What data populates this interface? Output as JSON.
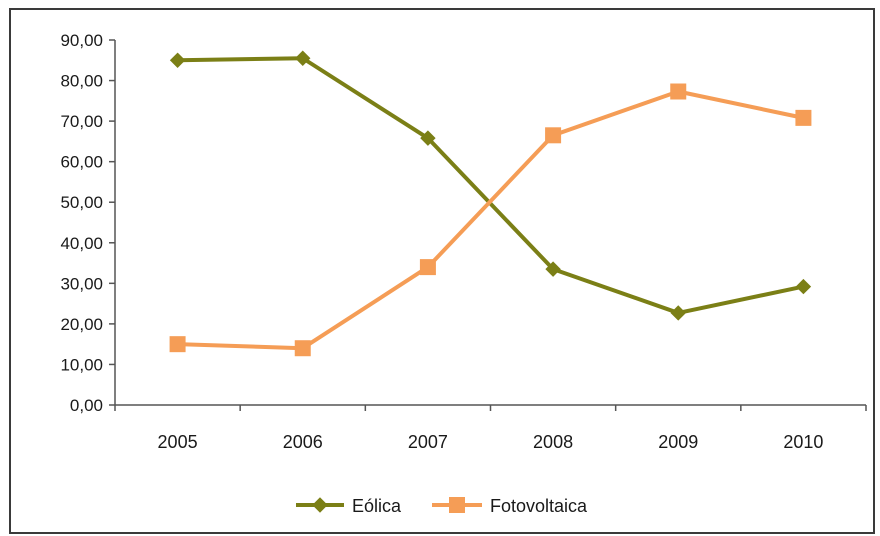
{
  "chart_data": {
    "type": "line",
    "categories": [
      "2005",
      "2006",
      "2007",
      "2008",
      "2009",
      "2010"
    ],
    "series": [
      {
        "name": "Eólica",
        "values": [
          85.0,
          85.5,
          65.8,
          33.5,
          22.7,
          29.2
        ],
        "color": "#7b7f16",
        "marker": "diamond"
      },
      {
        "name": "Fotovoltaica",
        "values": [
          15.0,
          14.0,
          34.0,
          66.5,
          77.3,
          70.8
        ],
        "color": "#f59d56",
        "marker": "square"
      }
    ],
    "ylim": [
      0,
      90
    ],
    "yticks": [
      "0,00",
      "10,00",
      "20,00",
      "30,00",
      "40,00",
      "50,00",
      "60,00",
      "70,00",
      "80,00",
      "90,00"
    ],
    "ytick_values": [
      0,
      10,
      20,
      30,
      40,
      50,
      60,
      70,
      80,
      90
    ],
    "grid": false,
    "legend_position": "bottom"
  }
}
